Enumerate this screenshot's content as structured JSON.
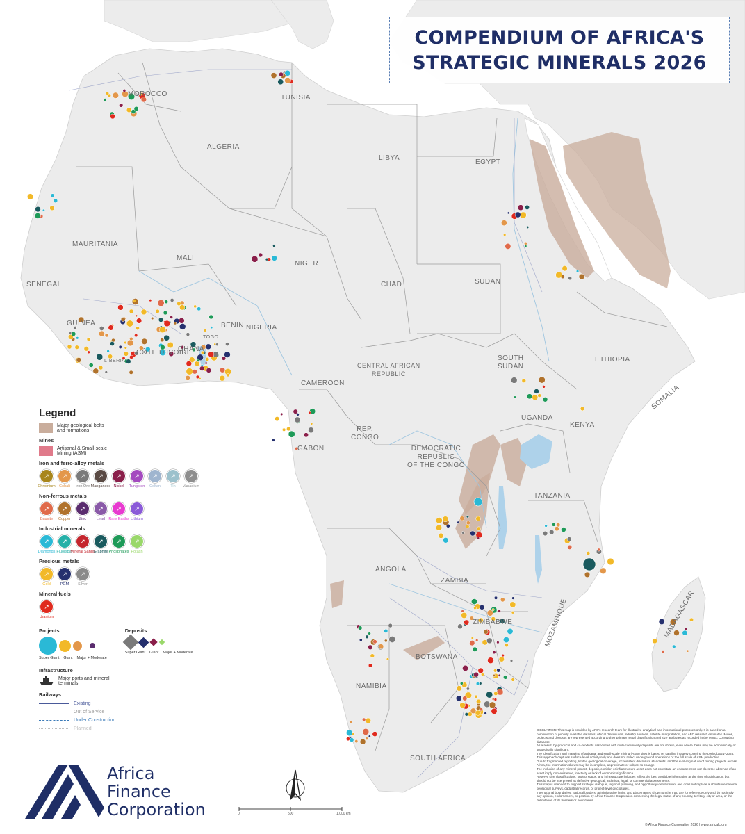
{
  "title": {
    "line1": "COMPENDIUM OF AFRICA'S",
    "line2": "STRATEGIC MINERALS 2026"
  },
  "countries": [
    {
      "key": "morocco",
      "label": "MOROCCO"
    },
    {
      "key": "tunisia",
      "label": "TUNISIA"
    },
    {
      "key": "algeria",
      "label": "ALGERIA"
    },
    {
      "key": "libya",
      "label": "LIBYA"
    },
    {
      "key": "egypt",
      "label": "EGYPT"
    },
    {
      "key": "mauritania",
      "label": "MAURITANIA"
    },
    {
      "key": "mali",
      "label": "MALI"
    },
    {
      "key": "niger",
      "label": "NIGER"
    },
    {
      "key": "chad",
      "label": "CHAD"
    },
    {
      "key": "sudan",
      "label": "SUDAN"
    },
    {
      "key": "senegal",
      "label": "SENEGAL"
    },
    {
      "key": "guinea",
      "label": "GUINEA"
    },
    {
      "key": "cote_divoire",
      "label": "CÔTE D'IVOIRE"
    },
    {
      "key": "ghana",
      "label": "GHANA"
    },
    {
      "key": "benin",
      "label": "BENIN"
    },
    {
      "key": "nigeria",
      "label": "NIGERIA"
    },
    {
      "key": "togo",
      "label": "TOGO"
    },
    {
      "key": "liberia",
      "label": "LIBERIA"
    },
    {
      "key": "car",
      "label": "CENTRAL AFRICAN\nREPUBLIC"
    },
    {
      "key": "south_sudan",
      "label": "SOUTH\nSUDAN"
    },
    {
      "key": "ethiopia",
      "label": "ETHIOPIA"
    },
    {
      "key": "somalia",
      "label": "SOMALIA"
    },
    {
      "key": "cameroon",
      "label": "CAMEROON"
    },
    {
      "key": "gabon",
      "label": "GABON"
    },
    {
      "key": "rep_congo",
      "label": "REP.\nCONGO"
    },
    {
      "key": "drc",
      "label": "DEMOCRATIC\nREPUBLIC\nOF THE CONGO"
    },
    {
      "key": "uganda",
      "label": "UGANDA"
    },
    {
      "key": "kenya",
      "label": "KENYA"
    },
    {
      "key": "tanzania",
      "label": "TANZANIA"
    },
    {
      "key": "angola",
      "label": "ANGOLA"
    },
    {
      "key": "zambia",
      "label": "ZAMBIA"
    },
    {
      "key": "zimbabwe",
      "label": "ZIMBABWE"
    },
    {
      "key": "mozambique",
      "label": "MOZAMBIQUE"
    },
    {
      "key": "madagascar",
      "label": "MADAGASCAR"
    },
    {
      "key": "botswana",
      "label": "BOTSWANA"
    },
    {
      "key": "namibia",
      "label": "NAMIBIA"
    },
    {
      "key": "south_africa",
      "label": "SOUTH AFRICA"
    }
  ],
  "legend": {
    "title": "Legend",
    "belts_label": "Major geological belts and formations",
    "mines_heading": "Mines",
    "asm_label": "Artisanal & Small-scale Mining (ASM)",
    "iron_heading": "Iron and ferro-alloy metals",
    "iron_items": [
      {
        "name": "Chromium",
        "color": "#a8861c"
      },
      {
        "name": "Cobalt",
        "color": "#e3974a"
      },
      {
        "name": "Iron Ore",
        "color": "#7a7a7a"
      },
      {
        "name": "Manganese",
        "color": "#5a4a44"
      },
      {
        "name": "Nickel",
        "color": "#8a1f4a"
      },
      {
        "name": "Tungsten",
        "color": "#a44abf"
      },
      {
        "name": "Coltan",
        "color": "#9fb5cf"
      },
      {
        "name": "Tin",
        "color": "#9cc1cc"
      },
      {
        "name": "Vanadium",
        "color": "#8e8e8e"
      }
    ],
    "nonferrous_heading": "Non-ferrous metals",
    "nonferrous_items": [
      {
        "name": "Bauxite",
        "color": "#e06a4a"
      },
      {
        "name": "Copper",
        "color": "#b0722c"
      },
      {
        "name": "Zinc",
        "color": "#5a2c6e"
      },
      {
        "name": "Lead",
        "color": "#8a5aa8"
      },
      {
        "name": "Rare Earths",
        "color": "#e83ad0"
      },
      {
        "name": "Lithium",
        "color": "#8a5ad8"
      }
    ],
    "industrial_heading": "Industrial minerals",
    "industrial_items": [
      {
        "name": "Diamonds",
        "color": "#2ab9d6"
      },
      {
        "name": "Fluorspar",
        "color": "#26b0a8"
      },
      {
        "name": "Mineral Sands",
        "color": "#c4262e"
      },
      {
        "name": "Graphite",
        "color": "#1a5a5e"
      },
      {
        "name": "Phosphates",
        "color": "#1e9a58"
      },
      {
        "name": "Potash",
        "color": "#9ad86a"
      }
    ],
    "precious_heading": "Precious metals",
    "precious_items": [
      {
        "name": "Gold",
        "color": "#f2b928"
      },
      {
        "name": "PGM",
        "color": "#25306e"
      },
      {
        "name": "Silver",
        "color": "#8a8a8a"
      }
    ],
    "fuels_heading": "Mineral fuels",
    "fuel_items": [
      {
        "name": "Uranium",
        "color": "#e02a1e"
      }
    ],
    "projects_heading": "Projects",
    "project_sizes": [
      "Super Giant",
      "Giant",
      "Major + Moderate"
    ],
    "deposits_heading": "Deposits",
    "deposit_sizes": [
      "Super Giant",
      "Giant",
      "Major + Moderate"
    ],
    "infrastructure_heading": "Infrastructure",
    "ports_label": "Major ports and mineral terminals",
    "railways_heading": "Railways",
    "rail_types": [
      {
        "name": "Existing",
        "color": "#4a5a9a"
      },
      {
        "name": "Out of Service",
        "color": "#9a9a9a"
      },
      {
        "name": "Under Construction",
        "color": "#3a7ab8"
      },
      {
        "name": "Planned",
        "color": "#bdbdbd"
      }
    ]
  },
  "colors": {
    "land": "#ececec",
    "sea": "#ffffff",
    "belts": "#c9ad9c",
    "lakes": "#aed2ea",
    "title": "#1f2e66",
    "asm": "#e07a8a"
  },
  "scale": {
    "start": "0",
    "mid": "500",
    "end": "1,000 km"
  },
  "logo": {
    "line1": "Africa",
    "line2": "Finance",
    "line3": "Corporation"
  },
  "disclaimer": [
    "DISCLAIMER: This map is provided by AFC's research team for illustrative analytical and informational purposes only. It is based on a combination of publicly available datasets, official disclosures, industry sources, satellite interpretation, and AFC research estimates. Mines, projects and deposits are represented according to their primary metal classification and size attributes as recorded in the MinEx Consulting database.",
    "As a result, by-products and co-products associated with multi-commodity deposits are not shown, even where these may be economically or strategically significant.",
    "The identification and mapping of artisanal and small-scale mining (ASM) sites is based on satellite imagery covering the period 2021–2025. This approach captures surface-level activity only and does not reflect underground operations or the full scale of ASM production.",
    "Due to fragmented reporting, limited geological coverage, inconsistent disclosure standards, and the evolving nature of mining projects across Africa, the information shown may be incomplete, approximate or subject to change.",
    "The inclusion of any mineral project, deposit, corridor, or infrastructure asset does not constitute an endorsement, nor does the absence of an asset imply non-existence, inactivity or lack of economic significance.",
    "Reserve size classifications, project status, and infrastructure linkages reflect the best available information at the time of publication, but should not be interpreted as definitive geological, technical, legal, or commercial assessments.",
    "This map is intended to support strategic dialogue, regional planning, and opportunity identification, and does not replace authoritative national geological surveys, cadastral records, or project-level disclosures.",
    "International boundaries, national borders, administrative limits, and place names shown on the map are for reference only and do not imply any opinion, endorsement, or position by Africa Finance Corporation concerning the legal status of any country, territory, city or area, or the delimitation of its frontiers or boundaries."
  ],
  "copyright": "© Africa Finance Corporation 2026 | www.africafc.org"
}
